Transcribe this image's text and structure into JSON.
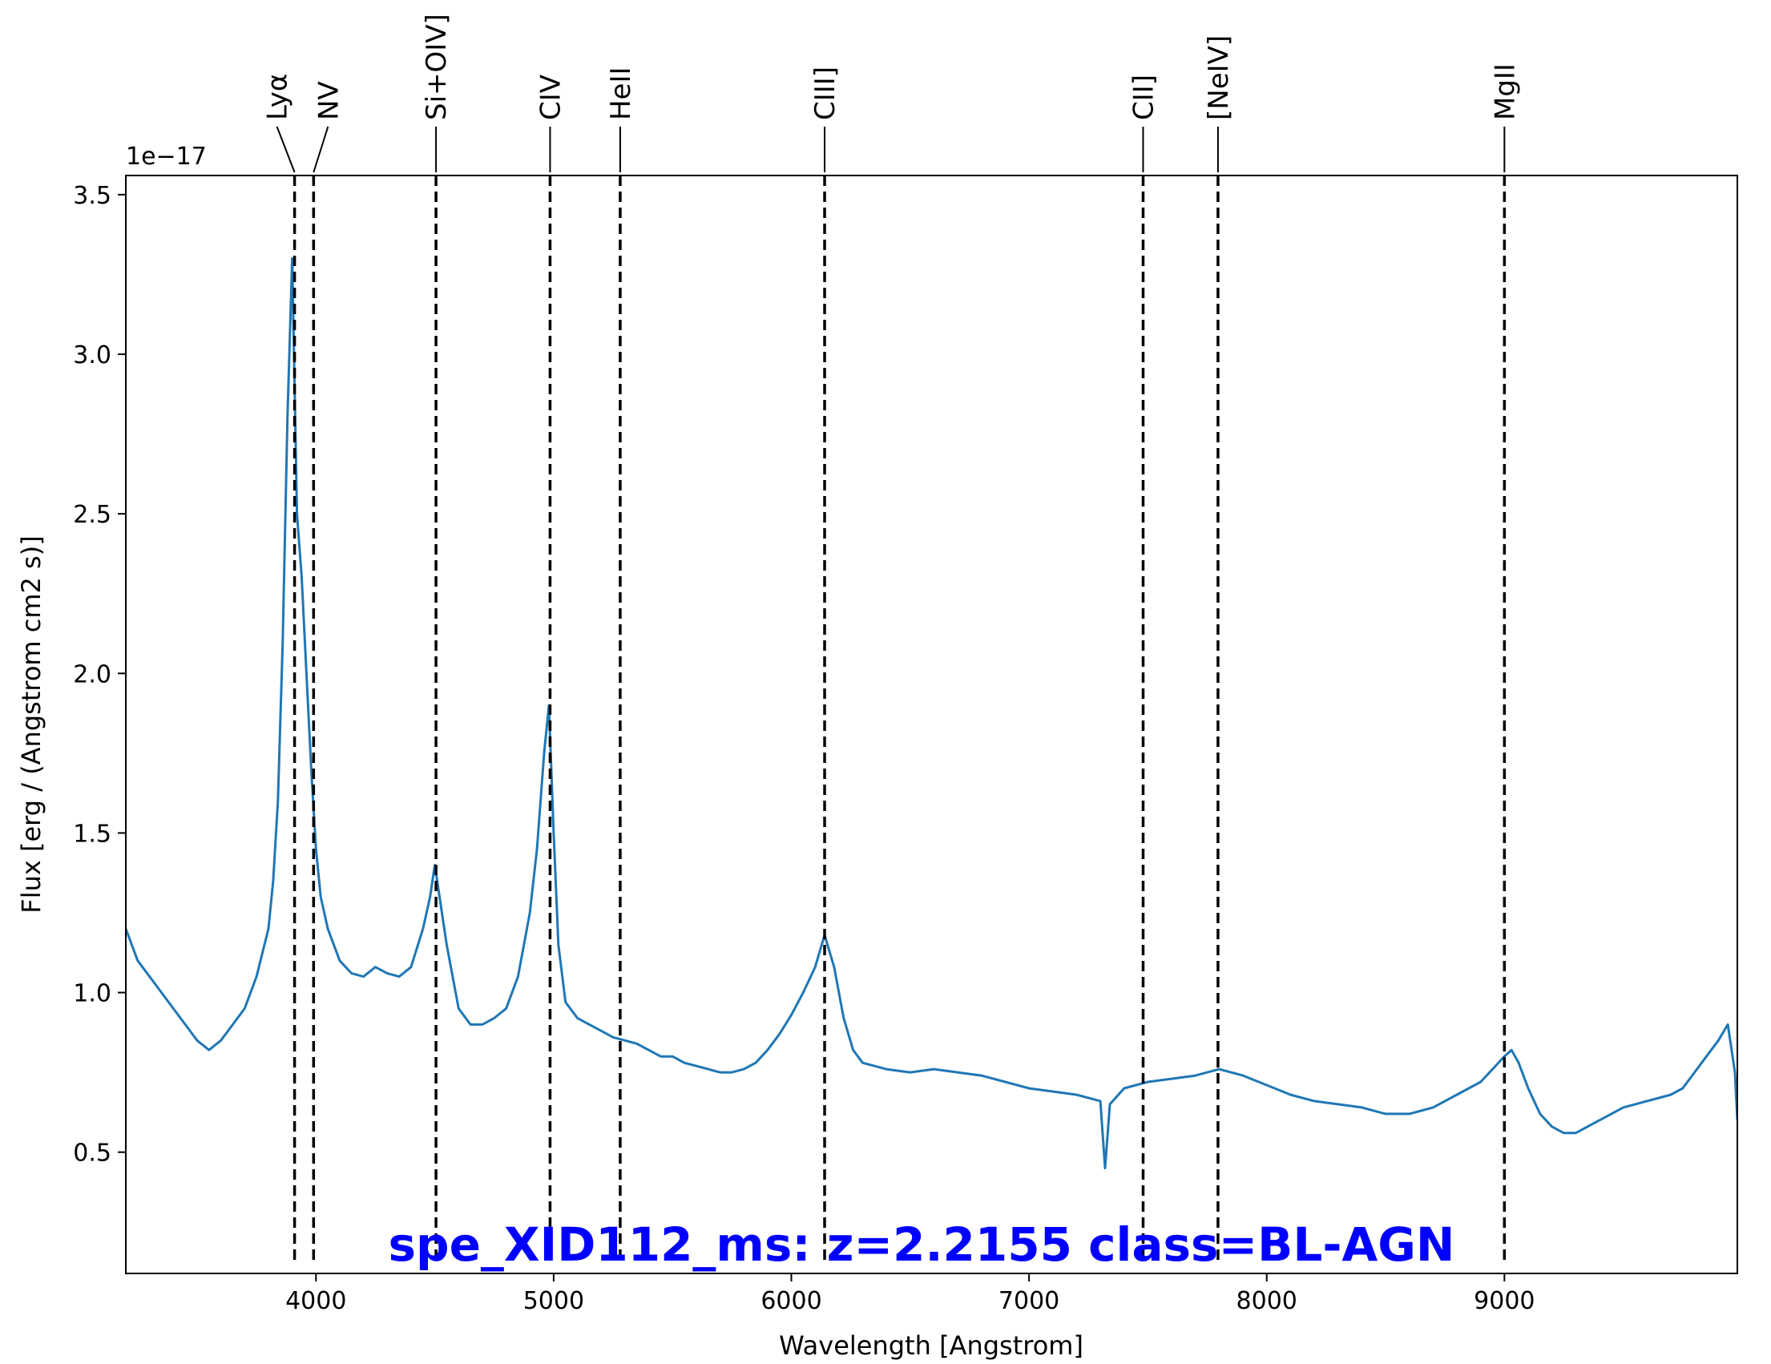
{
  "chart_data": {
    "type": "line",
    "title": "spe_XID112_ms: z=2.2155 class=BL-AGN",
    "title_color": "#0000ff",
    "xlabel": "Wavelength [Angstrom]",
    "ylabel": "Flux [erg / (Angstrom cm2 s)]",
    "y_scale_label": "1e−17",
    "xlim": [
      3200,
      9980
    ],
    "ylim": [
      0.12,
      3.56
    ],
    "x_ticks": [
      4000,
      5000,
      6000,
      7000,
      8000,
      9000
    ],
    "x_tick_labels": [
      "4000",
      "5000",
      "6000",
      "7000",
      "8000",
      "9000"
    ],
    "y_ticks": [
      0.5,
      1.0,
      1.5,
      2.0,
      2.5,
      3.0,
      3.5
    ],
    "y_tick_labels": [
      "0.5",
      "1.0",
      "1.5",
      "2.0",
      "2.5",
      "3.0",
      "3.5"
    ],
    "grid": false,
    "line_color": "#1f77b4",
    "x": [
      3200,
      3250,
      3300,
      3350,
      3400,
      3450,
      3500,
      3550,
      3600,
      3650,
      3700,
      3750,
      3800,
      3820,
      3840,
      3860,
      3880,
      3900,
      3910,
      3920,
      3940,
      3960,
      3980,
      4000,
      4020,
      4050,
      4100,
      4150,
      4200,
      4250,
      4300,
      4350,
      4400,
      4450,
      4480,
      4500,
      4520,
      4550,
      4600,
      4650,
      4700,
      4750,
      4800,
      4850,
      4900,
      4930,
      4960,
      4980,
      5000,
      5020,
      5050,
      5100,
      5150,
      5200,
      5250,
      5300,
      5350,
      5400,
      5450,
      5500,
      5550,
      5600,
      5650,
      5700,
      5750,
      5800,
      5850,
      5900,
      5950,
      6000,
      6050,
      6100,
      6140,
      6180,
      6220,
      6260,
      6300,
      6400,
      6500,
      6600,
      6700,
      6800,
      6900,
      7000,
      7100,
      7200,
      7300,
      7320,
      7340,
      7400,
      7500,
      7600,
      7700,
      7800,
      7900,
      8000,
      8100,
      8200,
      8300,
      8400,
      8500,
      8600,
      8700,
      8800,
      8900,
      8950,
      9000,
      9030,
      9060,
      9100,
      9150,
      9200,
      9250,
      9300,
      9350,
      9400,
      9450,
      9500,
      9550,
      9600,
      9650,
      9700,
      9750,
      9800,
      9850,
      9900,
      9940,
      9970,
      9980
    ],
    "values": [
      1.2,
      1.1,
      1.05,
      1.0,
      0.95,
      0.9,
      0.85,
      0.82,
      0.85,
      0.9,
      0.95,
      1.05,
      1.2,
      1.35,
      1.6,
      2.1,
      2.8,
      3.3,
      2.9,
      2.5,
      2.3,
      2.0,
      1.7,
      1.45,
      1.3,
      1.2,
      1.1,
      1.06,
      1.05,
      1.08,
      1.06,
      1.05,
      1.08,
      1.2,
      1.3,
      1.4,
      1.3,
      1.15,
      0.95,
      0.9,
      0.9,
      0.92,
      0.95,
      1.05,
      1.25,
      1.45,
      1.75,
      1.9,
      1.5,
      1.15,
      0.97,
      0.92,
      0.9,
      0.88,
      0.86,
      0.85,
      0.84,
      0.82,
      0.8,
      0.8,
      0.78,
      0.77,
      0.76,
      0.75,
      0.75,
      0.76,
      0.78,
      0.82,
      0.87,
      0.93,
      1.0,
      1.08,
      1.18,
      1.08,
      0.92,
      0.82,
      0.78,
      0.76,
      0.75,
      0.76,
      0.75,
      0.74,
      0.72,
      0.7,
      0.69,
      0.68,
      0.66,
      0.45,
      0.65,
      0.7,
      0.72,
      0.73,
      0.74,
      0.76,
      0.74,
      0.71,
      0.68,
      0.66,
      0.65,
      0.64,
      0.62,
      0.62,
      0.64,
      0.68,
      0.72,
      0.76,
      0.8,
      0.82,
      0.78,
      0.7,
      0.62,
      0.58,
      0.56,
      0.56,
      0.58,
      0.6,
      0.62,
      0.64,
      0.65,
      0.66,
      0.67,
      0.68,
      0.7,
      0.75,
      0.8,
      0.85,
      0.9,
      0.75,
      0.6
    ],
    "lines": [
      {
        "label": "Lyα",
        "wavelength": 3910
      },
      {
        "label": "NV",
        "wavelength": 3990
      },
      {
        "label": "Si+OIV]",
        "wavelength": 4505
      },
      {
        "label": "CIV",
        "wavelength": 4985
      },
      {
        "label": "HeII",
        "wavelength": 5280
      },
      {
        "label": "CIII]",
        "wavelength": 6140
      },
      {
        "label": "CII]",
        "wavelength": 7480
      },
      {
        "label": "[NeIV]",
        "wavelength": 7795
      },
      {
        "label": "MgII",
        "wavelength": 9000
      }
    ]
  }
}
